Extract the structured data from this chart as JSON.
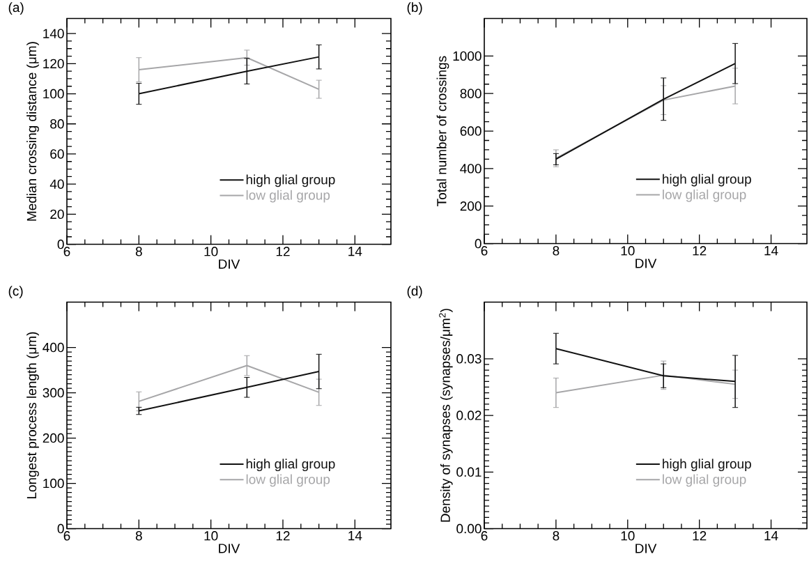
{
  "chart_data": [
    {
      "type": "line",
      "title": "(a)",
      "xlabel": "DIV",
      "ylabel": "Median crossing distance (μm)",
      "x": [
        8,
        11,
        13
      ],
      "xlim": [
        6,
        15
      ],
      "xticks": [
        6,
        8,
        10,
        12,
        14
      ],
      "ylim": [
        0,
        150
      ],
      "yticks": [
        0,
        20,
        40,
        60,
        80,
        100,
        120,
        140
      ],
      "legend": "bottom right",
      "series": [
        {
          "name": "high glial group",
          "color": "#111111",
          "values": [
            100,
            115,
            124.5
          ],
          "errors": [
            7,
            8.5,
            8
          ]
        },
        {
          "name": "low glial group",
          "color": "#a6a6a8",
          "values": [
            116,
            124,
            103
          ],
          "errors": [
            8,
            5,
            6
          ]
        }
      ]
    },
    {
      "type": "line",
      "title": "(b)",
      "xlabel": "DIV",
      "ylabel": "Total number of crossings",
      "x": [
        8,
        11,
        13
      ],
      "xlim": [
        6,
        15
      ],
      "xticks": [
        6,
        8,
        10,
        12,
        14
      ],
      "ylim": [
        0,
        1200
      ],
      "yticks": [
        0,
        200,
        400,
        600,
        800,
        1000
      ],
      "legend": "bottom right",
      "series": [
        {
          "name": "high glial group",
          "color": "#111111",
          "values": [
            450,
            770,
            960
          ],
          "errors": [
            30,
            113,
            107
          ]
        },
        {
          "name": "low glial group",
          "color": "#a6a6a8",
          "values": [
            455,
            765,
            840
          ],
          "errors": [
            45,
            77,
            95
          ]
        }
      ]
    },
    {
      "type": "line",
      "title": "(c)",
      "xlabel": "DIV",
      "ylabel": "Longest process length (μm)",
      "x": [
        8,
        11,
        13
      ],
      "xlim": [
        6,
        15
      ],
      "xticks": [
        6,
        8,
        10,
        12,
        14
      ],
      "ylim": [
        0,
        500
      ],
      "yticks": [
        0,
        100,
        200,
        300,
        400
      ],
      "legend": "bottom right",
      "series": [
        {
          "name": "high glial group",
          "color": "#111111",
          "values": [
            260,
            312,
            347
          ],
          "errors": [
            8,
            22,
            38
          ]
        },
        {
          "name": "low glial group",
          "color": "#a6a6a8",
          "values": [
            281,
            360,
            301
          ],
          "errors": [
            21,
            22,
            29
          ]
        }
      ]
    },
    {
      "type": "line",
      "title": "(d)",
      "xlabel": "DIV",
      "ylabel": "Density of synapses (synapses/μm$^{2}$)",
      "x": [
        8,
        11,
        13
      ],
      "xlim": [
        6,
        15
      ],
      "xticks": [
        6,
        8,
        10,
        12,
        14
      ],
      "ylim": [
        0,
        0.04
      ],
      "yticks": [
        {
          "value": 0,
          "label": "0.00"
        },
        {
          "value": 0.01,
          "label": "0.01"
        },
        {
          "value": 0.02,
          "label": "0.02"
        },
        {
          "value": 0.03,
          "label": "0.03"
        }
      ],
      "legend": "bottom right",
      "series": [
        {
          "name": "high glial group",
          "color": "#111111",
          "values": [
            0.0318,
            0.027,
            0.026
          ],
          "errors": [
            0.0027,
            0.0021,
            0.0046
          ]
        },
        {
          "name": "low glial group",
          "color": "#a6a6a8",
          "values": [
            0.024,
            0.0271,
            0.0255
          ],
          "errors": [
            0.0026,
            0.0025,
            0.0025
          ]
        }
      ]
    }
  ]
}
